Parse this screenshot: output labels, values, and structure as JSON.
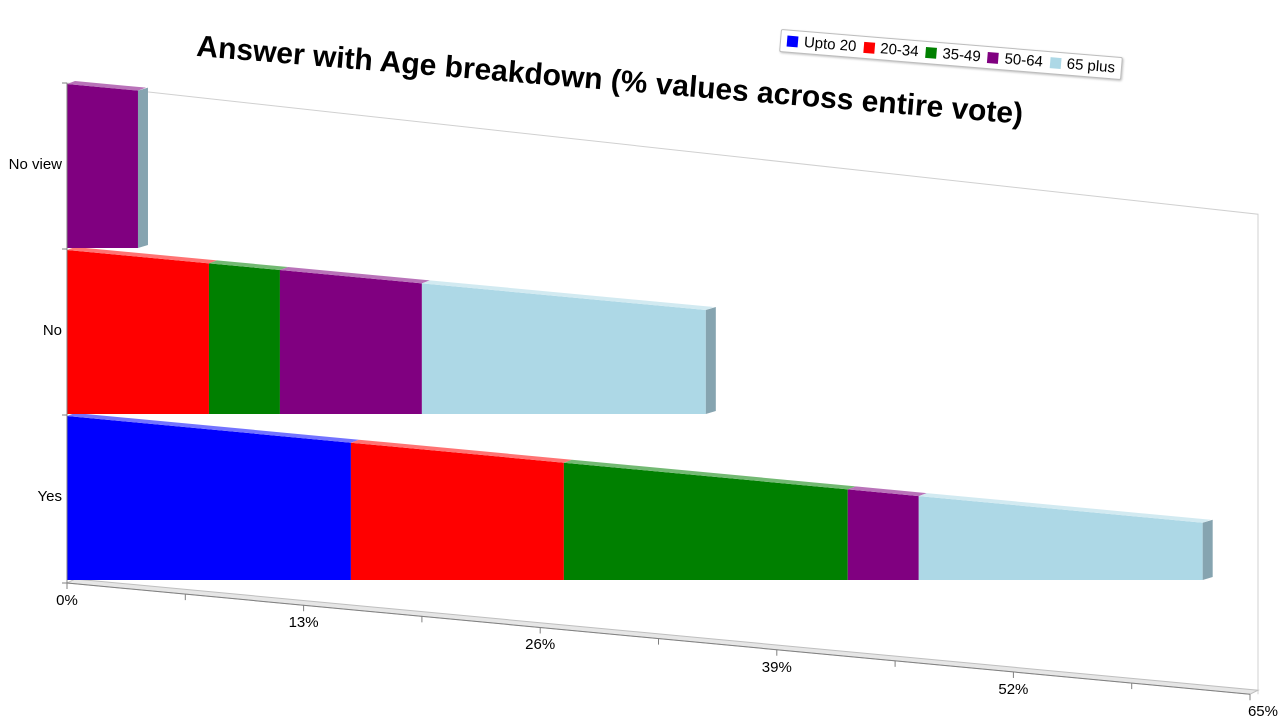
{
  "chart_data": {
    "type": "bar",
    "orientation": "horizontal",
    "stacked": true,
    "title": "Answer with Age breakdown (% values across entire vote)",
    "categories": [
      "Yes",
      "No",
      "No view"
    ],
    "x_tick_labels": [
      "0%",
      "13%",
      "26%",
      "39%",
      "52%",
      "65%"
    ],
    "xlim": [
      0,
      65
    ],
    "grid": false,
    "legend_position": "top-right",
    "series": [
      {
        "name": "Upto 20",
        "color": "#0000ff",
        "values": [
          15.6,
          0,
          0
        ]
      },
      {
        "name": "20-34",
        "color": "#ff0000",
        "values": [
          11.7,
          7.8,
          0
        ]
      },
      {
        "name": "35-49",
        "color": "#008000",
        "values": [
          15.6,
          3.9,
          0
        ]
      },
      {
        "name": "50-64",
        "color": "#800080",
        "values": [
          3.9,
          7.8,
          3.9
        ]
      },
      {
        "name": "65 plus",
        "color": "#add8e6",
        "values": [
          15.6,
          15.6,
          0
        ]
      }
    ]
  }
}
